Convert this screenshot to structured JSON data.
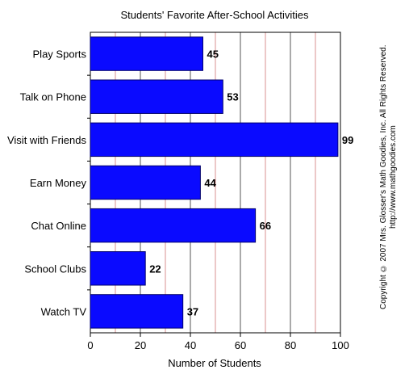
{
  "chart_data": {
    "type": "bar",
    "orientation": "horizontal",
    "title": "Students' Favorite After-School Activities",
    "xlabel": "Number of Students",
    "ylabel": "",
    "xlim": [
      0,
      100
    ],
    "xticks": [
      0,
      20,
      40,
      60,
      80,
      100
    ],
    "categories": [
      "Play Sports",
      "Talk on Phone",
      "Visit with Friends",
      "Earn Money",
      "Chat Online",
      "School Clubs",
      "Watch TV"
    ],
    "values": [
      45,
      53,
      99,
      44,
      66,
      22,
      37
    ],
    "data_labels": [
      "45",
      "53",
      "99",
      "44",
      "66",
      "22",
      "37"
    ],
    "grid": "vertical",
    "colors": {
      "bar": "#0a0aff",
      "bar_edge": "#00006e",
      "grid_major": "#555555",
      "grid_minor": "#d89090",
      "axis": "#000000"
    }
  },
  "copyright": {
    "line1": "Copyright © 2007 Mrs. Glosser's Math Goodies, Inc. All Rights Reserved.",
    "line2": "http://www.mathgoodies.com"
  }
}
